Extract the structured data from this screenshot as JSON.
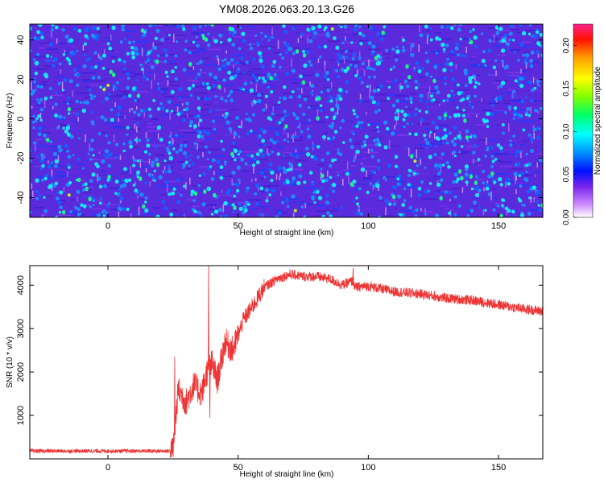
{
  "title": "YM08.2026.063.20.13.G26",
  "chart_data": [
    {
      "type": "heatmap",
      "name": "spectrogram",
      "xlabel": "Height of straight line (km)",
      "ylabel": "Frequency (Hz)",
      "xlim": [
        -30,
        167
      ],
      "ylim": [
        -50,
        48
      ],
      "xticks": [
        0,
        50,
        100,
        150
      ],
      "yticks": [
        -40,
        -20,
        0,
        20,
        40
      ],
      "colorbar": {
        "label": "Normalized spectral amplitude",
        "range": [
          0,
          0.225
        ],
        "ticks": [
          "0.00",
          "0.05",
          "0.10",
          "0.15",
          "0.20"
        ],
        "tick_values": [
          0,
          0.05,
          0.1,
          0.15,
          0.2
        ]
      },
      "description_values": {
        "background_level": 0.03,
        "typical_spots": 0.08,
        "max_spots": 0.15
      }
    },
    {
      "type": "line",
      "name": "snr",
      "xlabel": "Height of straight line (km)",
      "ylabel": "SNR (10 * v/v)",
      "xlim": [
        -30,
        167
      ],
      "ylim": [
        0,
        4450
      ],
      "xticks": [
        0,
        50,
        100,
        150
      ],
      "yticks": [
        1000,
        2000,
        3000,
        4000
      ],
      "color": "#ee3333",
      "envelope": {
        "x": [
          -30,
          24,
          25,
          27,
          30,
          33,
          36,
          38,
          40,
          42,
          45,
          48,
          52,
          56,
          60,
          65,
          70,
          75,
          80,
          85,
          90,
          94,
          95,
          100,
          110,
          120,
          130,
          140,
          150,
          160,
          167
        ],
        "y": [
          180,
          180,
          200,
          1600,
          1300,
          1700,
          1500,
          2000,
          2200,
          1800,
          2700,
          2500,
          3200,
          3550,
          3950,
          4150,
          4250,
          4200,
          4200,
          4150,
          4000,
          4100,
          3950,
          3980,
          3850,
          3800,
          3700,
          3650,
          3550,
          3450,
          3400
        ]
      },
      "spikes": [
        {
          "x": 25.5,
          "y": 2350
        },
        {
          "x": 38.5,
          "y": 4450
        },
        {
          "x": 39.0,
          "y": 950
        },
        {
          "x": 94.0,
          "y": 4400
        }
      ]
    }
  ]
}
